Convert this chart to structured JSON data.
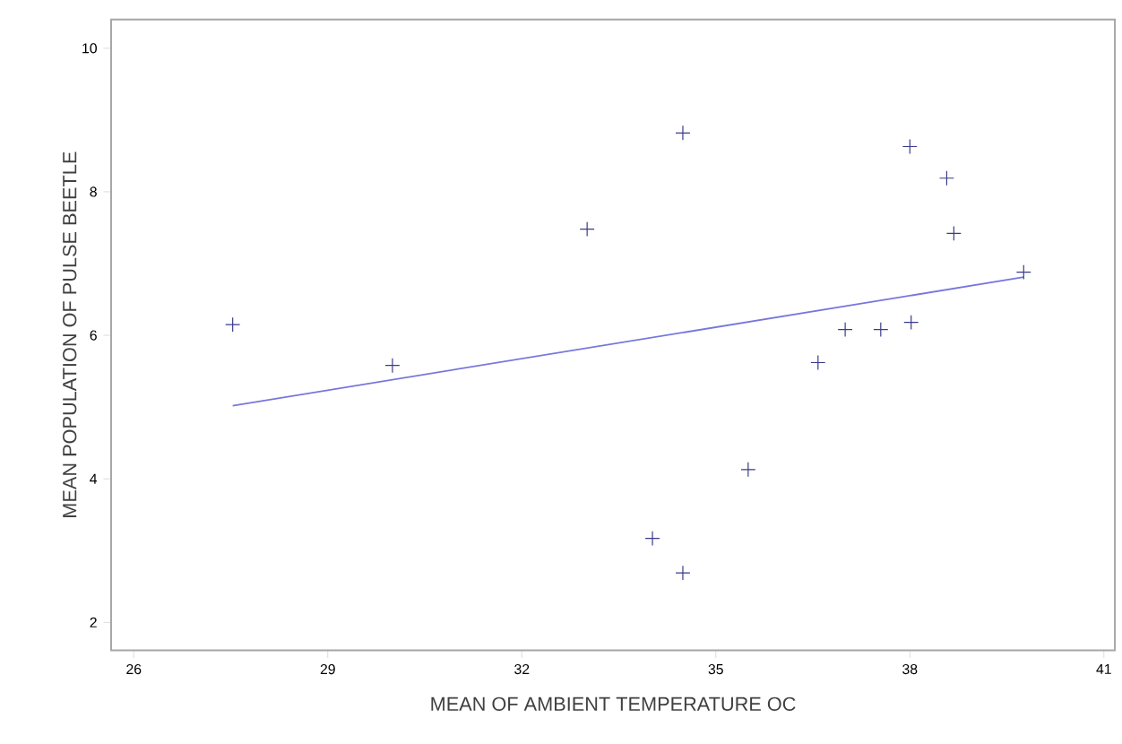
{
  "chart_data": {
    "type": "scatter",
    "xlabel": "MEAN OF AMBIENT TEMPERATURE OC",
    "ylabel": "MEAN POPULATION OF PULSE BEETLE",
    "xlim": [
      25.65,
      41.17
    ],
    "ylim": [
      1.61,
      10.4
    ],
    "xticks": [
      26,
      29,
      32,
      35,
      38,
      41
    ],
    "yticks": [
      2,
      4,
      6,
      8,
      10
    ],
    "marker": "cross",
    "grid": false,
    "series": [
      {
        "color": "#3a3a8a",
        "x": [
          27.53,
          30.0,
          33.01,
          34.49,
          34.02,
          34.49,
          35.5,
          36.58,
          37.0,
          37.55,
          38.02,
          38.0,
          38.57,
          38.68,
          39.76
        ],
        "values": [
          6.15,
          5.58,
          7.48,
          8.82,
          3.17,
          2.69,
          4.13,
          5.62,
          6.08,
          6.08,
          6.18,
          8.63,
          8.19,
          7.42,
          6.88
        ]
      },
      {
        "type": "line",
        "color": "#7777dd",
        "marker": "none",
        "x": [
          27.53,
          39.76
        ],
        "values": [
          5.02,
          6.81
        ]
      }
    ]
  }
}
